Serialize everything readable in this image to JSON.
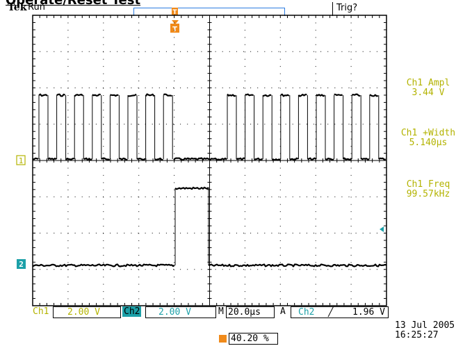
{
  "header": {
    "doc_title": "Operate/Reset Test",
    "brand": "Tek",
    "run_state": "Run",
    "trigger_state": "Trig?"
  },
  "channels": {
    "ch1_marker": "1",
    "ch2_marker": "2"
  },
  "measurements": [
    {
      "label": "Ch1 Ampl",
      "value": "3.44 V"
    },
    {
      "label": "Ch1 +Width",
      "value": "5.140µs"
    },
    {
      "label": "Ch1 Freq",
      "value": "99.57kHz"
    }
  ],
  "status": {
    "ch1_label": "Ch1",
    "ch1_scale": "2.00 V",
    "ch2_label": "Ch2",
    "ch2_scale": "2.00 V",
    "timebase_label": "M",
    "timebase_value": "20.0µs",
    "acq_label": "A",
    "trig_source": "Ch2",
    "trig_slope": "╱",
    "trig_level": "1.96 V"
  },
  "date": "13 Jul  2005",
  "time": "16:25:27",
  "trigger_position": "40.20 %",
  "colors": {
    "ch1": "#b3b300",
    "ch2": "#1ca0a8",
    "trigger": "#f08a1a",
    "grid": "#000000"
  }
}
